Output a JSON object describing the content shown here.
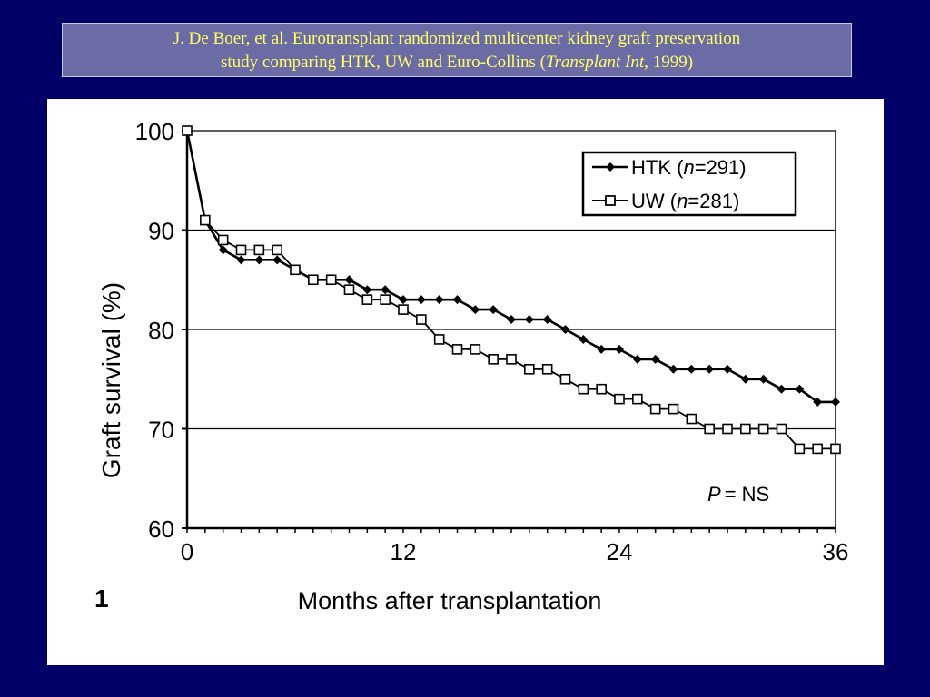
{
  "citation": {
    "line1": "J. De Boer, et al. Eurotransplant randomized multicenter kidney graft preservation",
    "line2_prefix": "study comparing HTK, UW and Euro-Collins (",
    "line2_journal": "Transplant Int,",
    "line2_suffix": " 1999)"
  },
  "chart_data": {
    "type": "line",
    "title": "",
    "xlabel": "Months after transplantation",
    "ylabel": "Graft survival (%)",
    "figure_number": "1",
    "annotation": {
      "p_symbol": "P",
      "p_text": "= NS"
    },
    "xlim": [
      0,
      36
    ],
    "ylim": [
      60,
      100
    ],
    "x_ticks": [
      "0",
      "12",
      "24",
      "36"
    ],
    "y_ticks": [
      "60",
      "70",
      "80",
      "90",
      "100"
    ],
    "grid": "horizontal",
    "legend_position": "top-right",
    "series": [
      {
        "name": "HTK (n=291)",
        "legend_label": "HTK",
        "legend_n": "291",
        "marker": "diamond-filled",
        "color": "#000000",
        "x": [
          0,
          1,
          2,
          3,
          4,
          5,
          6,
          7,
          8,
          9,
          10,
          11,
          12,
          13,
          14,
          15,
          16,
          17,
          18,
          19,
          20,
          21,
          22,
          23,
          24,
          25,
          26,
          27,
          28,
          29,
          30,
          31,
          32,
          33,
          34,
          35,
          36
        ],
        "y": [
          100,
          91,
          88,
          87,
          87,
          87,
          86,
          85,
          85,
          85,
          84,
          84,
          83,
          83,
          83,
          83,
          82,
          82,
          81,
          81,
          81,
          80,
          79,
          78,
          78,
          77,
          77,
          76,
          76,
          76,
          76,
          75,
          75,
          74,
          74,
          72.7,
          72.7
        ]
      },
      {
        "name": "UW (n=281)",
        "legend_label": "UW",
        "legend_n": "281",
        "marker": "square-open",
        "color": "#000000",
        "x": [
          0,
          1,
          2,
          3,
          4,
          5,
          6,
          7,
          8,
          9,
          10,
          11,
          12,
          13,
          14,
          15,
          16,
          17,
          18,
          19,
          20,
          21,
          22,
          23,
          24,
          25,
          26,
          27,
          28,
          29,
          30,
          31,
          32,
          33,
          34,
          35,
          36
        ],
        "y": [
          100,
          91,
          89,
          88,
          88,
          88,
          86,
          85,
          85,
          84,
          83,
          83,
          82,
          81,
          79,
          78,
          78,
          77,
          77,
          76,
          76,
          75,
          74,
          74,
          73,
          73,
          72,
          72,
          71,
          70,
          70,
          70,
          70,
          70,
          68,
          68,
          68
        ]
      }
    ]
  }
}
